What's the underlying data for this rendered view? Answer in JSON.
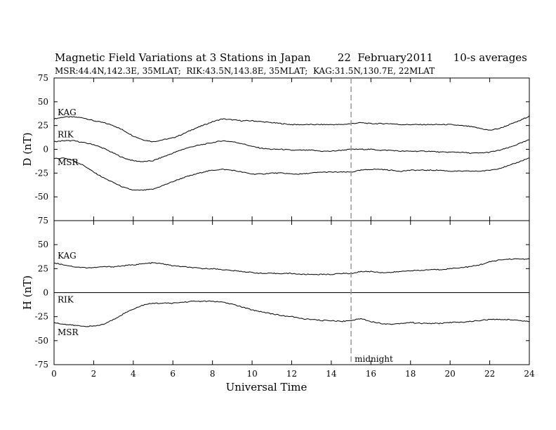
{
  "chart_data": {
    "type": "line",
    "title": "Magnetic Field Variations at 3 Stations in Japan        22  February2011      10-s averages",
    "subtitle": "MSR:44.4N,142.3E, 35MLAT;  RIK:43.5N,143.8E, 35MLAT;  KAG:31.5N,130.7E, 22MLAT",
    "xlabel": "Universal Time",
    "xlim": [
      0,
      24
    ],
    "xticks": [
      0,
      2,
      4,
      6,
      8,
      10,
      12,
      14,
      16,
      18,
      20,
      22,
      24
    ],
    "annotation": {
      "text": "midnight",
      "x": 15
    },
    "panels": [
      {
        "ylabel": "D (nT)",
        "ylim": [
          -75,
          75
        ],
        "yticks": [
          -75,
          -50,
          -25,
          0,
          25,
          50,
          75
        ],
        "series": [
          {
            "name": "KAG",
            "x": [
              0,
              0.5,
              1,
              1.5,
              2,
              2.5,
              3,
              3.5,
              4,
              4.5,
              5,
              5.5,
              6,
              6.5,
              7,
              7.5,
              8,
              8.5,
              9,
              9.5,
              10,
              10.5,
              11,
              11.5,
              12,
              12.5,
              13,
              13.5,
              14,
              14.5,
              15,
              15.5,
              16,
              16.5,
              17,
              17.5,
              18,
              18.5,
              19,
              19.5,
              20,
              20.5,
              21,
              21.5,
              22,
              22.5,
              23,
              23.5,
              24
            ],
            "values": [
              32,
              34,
              34,
              33,
              30,
              28,
              25,
              20,
              14,
              10,
              8,
              10,
              12,
              16,
              21,
              25,
              29,
              32,
              31,
              30,
              30,
              29,
              28,
              27,
              26,
              26,
              26,
              26,
              26,
              26,
              27,
              28,
              27,
              27,
              27,
              26,
              26,
              26,
              26,
              26,
              26,
              25,
              24,
              22,
              20,
              22,
              26,
              30,
              35
            ]
          },
          {
            "name": "RIK",
            "x": [
              0,
              0.5,
              1,
              1.5,
              2,
              2.5,
              3,
              3.5,
              4,
              4.5,
              5,
              5.5,
              6,
              6.5,
              7,
              7.5,
              8,
              8.5,
              9,
              9.5,
              10,
              10.5,
              11,
              11.5,
              12,
              12.5,
              13,
              13.5,
              14,
              14.5,
              15,
              15.5,
              16,
              16.5,
              17,
              17.5,
              18,
              18.5,
              19,
              19.5,
              20,
              20.5,
              21,
              21.5,
              22,
              22.5,
              23,
              23.5,
              24
            ],
            "values": [
              8,
              9,
              9,
              7,
              5,
              1,
              -4,
              -9,
              -12,
              -13,
              -12,
              -8,
              -4,
              0,
              3,
              5,
              7,
              9,
              8,
              6,
              3,
              1,
              0,
              0,
              -1,
              -1,
              -1,
              -2,
              -2,
              -1,
              0,
              0,
              0,
              -1,
              -1,
              -2,
              -2,
              -2,
              -2,
              -3,
              -3,
              -3,
              -4,
              -4,
              -3,
              -1,
              2,
              6,
              10
            ]
          },
          {
            "name": "MSR",
            "x": [
              0,
              0.5,
              1,
              1.5,
              2,
              2.5,
              3,
              3.5,
              4,
              4.5,
              5,
              5.5,
              6,
              6.5,
              7,
              7.5,
              8,
              8.5,
              9,
              9.5,
              10,
              10.5,
              11,
              11.5,
              12,
              12.5,
              13,
              13.5,
              14,
              14.5,
              15,
              15.5,
              16,
              16.5,
              17,
              17.5,
              18,
              18.5,
              19,
              19.5,
              20,
              20.5,
              21,
              21.5,
              22,
              22.5,
              23,
              23.5,
              24
            ],
            "values": [
              -10,
              -9,
              -12,
              -17,
              -24,
              -30,
              -35,
              -40,
              -43,
              -43,
              -42,
              -38,
              -34,
              -30,
              -27,
              -24,
              -22,
              -21,
              -22,
              -24,
              -26,
              -26,
              -25,
              -25,
              -26,
              -26,
              -25,
              -24,
              -24,
              -24,
              -24,
              -22,
              -21,
              -21,
              -22,
              -23,
              -22,
              -22,
              -22,
              -22,
              -23,
              -23,
              -23,
              -23,
              -22,
              -20,
              -17,
              -13,
              -9
            ]
          }
        ]
      },
      {
        "ylabel": "H (nT)",
        "ylim": [
          -75,
          75
        ],
        "yticks": [
          -75,
          -50,
          -25,
          0,
          25,
          50,
          75
        ],
        "series": [
          {
            "name": "KAG",
            "x": [
              0,
              0.5,
              1,
              1.5,
              2,
              2.5,
              3,
              3.5,
              4,
              4.5,
              5,
              5.5,
              6,
              6.5,
              7,
              7.5,
              8,
              8.5,
              9,
              9.5,
              10,
              10.5,
              11,
              11.5,
              12,
              12.5,
              13,
              13.5,
              14,
              14.5,
              15,
              15.5,
              16,
              16.5,
              17,
              17.5,
              18,
              18.5,
              19,
              19.5,
              20,
              20.5,
              21,
              21.5,
              22,
              22.5,
              23,
              23.5,
              24
            ],
            "values": [
              31,
              29,
              27,
              26,
              26,
              27,
              27,
              28,
              29,
              30,
              31,
              30,
              28,
              27,
              26,
              25,
              25,
              24,
              23,
              22,
              21,
              20,
              20,
              20,
              20,
              19,
              19,
              19,
              19,
              20,
              20,
              22,
              22,
              21,
              21,
              22,
              23,
              23,
              24,
              24,
              25,
              26,
              27,
              29,
              32,
              34,
              35,
              35,
              35
            ]
          },
          {
            "name": "RIK",
            "x": [
              0,
              24
            ],
            "values": [
              0,
              0
            ]
          },
          {
            "name": "MSR",
            "x": [
              0,
              0.5,
              1,
              1.5,
              2,
              2.5,
              3,
              3.5,
              4,
              4.5,
              5,
              5.5,
              6,
              6.5,
              7,
              7.5,
              8,
              8.5,
              9,
              9.5,
              10,
              10.5,
              11,
              11.5,
              12,
              12.5,
              13,
              13.5,
              14,
              14.5,
              15,
              15.5,
              16,
              16.5,
              17,
              17.5,
              18,
              18.5,
              19,
              19.5,
              20,
              20.5,
              21,
              21.5,
              22,
              22.5,
              23,
              23.5,
              24
            ],
            "values": [
              -31,
              -33,
              -34,
              -35,
              -35,
              -33,
              -28,
              -22,
              -17,
              -13,
              -11,
              -11,
              -11,
              -10,
              -9,
              -9,
              -9,
              -10,
              -12,
              -15,
              -18,
              -20,
              -22,
              -24,
              -25,
              -27,
              -28,
              -29,
              -29,
              -30,
              -29,
              -27,
              -30,
              -32,
              -33,
              -32,
              -31,
              -32,
              -32,
              -32,
              -31,
              -31,
              -30,
              -29,
              -28,
              -28,
              -28,
              -29,
              -30
            ]
          }
        ]
      }
    ]
  }
}
